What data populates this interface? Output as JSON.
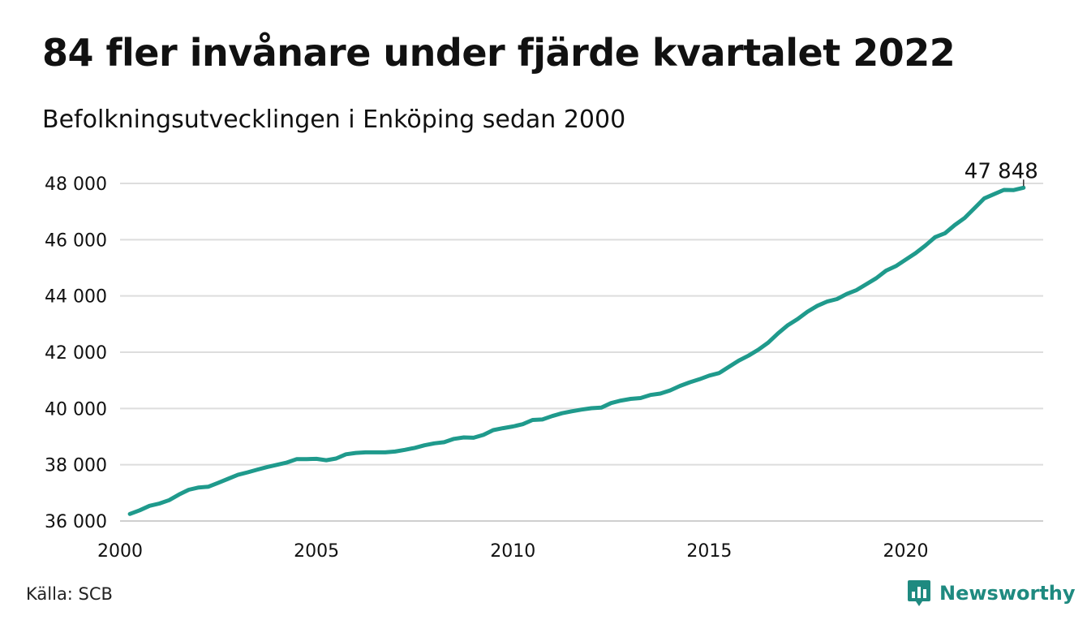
{
  "title": "84 fler invånare under fjärde kvartalet 2022",
  "subtitle": "Befolkningsutvecklingen i Enköping sedan 2000",
  "source": "Källa: SCB",
  "brand": "Newsworthy",
  "colors": {
    "line": "#1f9a8c",
    "grid": "#dddddd",
    "brand": "#1f8a80"
  },
  "chart_data": {
    "type": "line",
    "title": "84 fler invånare under fjärde kvartalet 2022",
    "subtitle": "Befolkningsutvecklingen i Enköping sedan 2000",
    "xlabel": "",
    "ylabel": "",
    "xlim": [
      2000,
      2023.5
    ],
    "ylim": [
      36000,
      48000
    ],
    "x_ticks": [
      2000,
      2005,
      2010,
      2015,
      2020
    ],
    "x_tick_labels": [
      "2000",
      "2005",
      "2010",
      "2015",
      "2020"
    ],
    "y_ticks": [
      36000,
      38000,
      40000,
      42000,
      44000,
      46000,
      48000
    ],
    "y_tick_labels": [
      "36 000",
      "38 000",
      "40 000",
      "42 000",
      "44 000",
      "46 000",
      "48 000"
    ],
    "grid": "horizontal",
    "legend": "none",
    "end_label": "47 848",
    "series": [
      {
        "x": [
          2000.25,
          2000.5,
          2000.75,
          2001.0,
          2001.25,
          2001.5,
          2001.75,
          2002.0,
          2002.25,
          2002.5,
          2002.75,
          2003.0,
          2003.25,
          2003.5,
          2003.75,
          2004.0,
          2004.25,
          2004.5,
          2004.75,
          2005.0,
          2005.25,
          2005.5,
          2005.75,
          2006.0,
          2006.25,
          2006.5,
          2006.75,
          2007.0,
          2007.25,
          2007.5,
          2007.75,
          2008.0,
          2008.25,
          2008.5,
          2008.75,
          2009.0,
          2009.25,
          2009.5,
          2009.75,
          2010.0,
          2010.25,
          2010.5,
          2010.75,
          2011.0,
          2011.25,
          2011.5,
          2011.75,
          2012.0,
          2012.25,
          2012.5,
          2012.75,
          2013.0,
          2013.25,
          2013.5,
          2013.75,
          2014.0,
          2014.25,
          2014.5,
          2014.75,
          2015.0,
          2015.25,
          2015.5,
          2015.75,
          2016.0,
          2016.25,
          2016.5,
          2016.75,
          2017.0,
          2017.25,
          2017.5,
          2017.75,
          2018.0,
          2018.25,
          2018.5,
          2018.75,
          2019.0,
          2019.25,
          2019.5,
          2019.75,
          2020.0,
          2020.25,
          2020.5,
          2020.75,
          2021.0,
          2021.25,
          2021.5,
          2021.75,
          2022.0,
          2022.25,
          2022.5,
          2022.75,
          2023.0
        ],
        "values": [
          36250,
          36380,
          36540,
          36620,
          36740,
          36940,
          37110,
          37190,
          37220,
          37360,
          37500,
          37640,
          37730,
          37830,
          37920,
          38000,
          38080,
          38200,
          38200,
          38210,
          38160,
          38220,
          38370,
          38420,
          38440,
          38440,
          38440,
          38470,
          38530,
          38600,
          38690,
          38760,
          38800,
          38920,
          38970,
          38960,
          39060,
          39230,
          39300,
          39360,
          39440,
          39590,
          39610,
          39730,
          39830,
          39900,
          39960,
          40010,
          40030,
          40190,
          40280,
          40340,
          40370,
          40480,
          40530,
          40640,
          40800,
          40930,
          41040,
          41170,
          41260,
          41480,
          41700,
          41880,
          42090,
          42340,
          42670,
          42960,
          43180,
          43440,
          43650,
          43800,
          43890,
          44070,
          44210,
          44420,
          44630,
          44900,
          45060,
          45290,
          45520,
          45790,
          46090,
          46230,
          46520,
          46770,
          47120,
          47470,
          47620,
          47770,
          47764,
          47848
        ]
      }
    ]
  }
}
